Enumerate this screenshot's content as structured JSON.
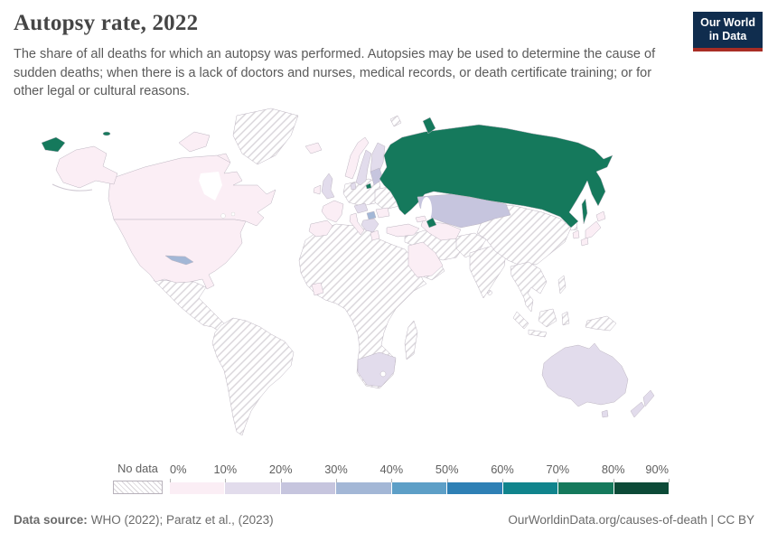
{
  "header": {
    "title": "Autopsy rate, 2022",
    "subtitle": "The share of all deaths for which an autopsy was performed. Autopsies may be used to determine the cause of sudden deaths; when there is a lack of doctors and nurses, medical records, or death certificate training; or for other legal or cultural reasons.",
    "logo": {
      "line1": "Our World",
      "line2": "in Data"
    }
  },
  "chart_data": {
    "type": "choropleth-map",
    "title": "Autopsy rate, 2022",
    "unit": "%",
    "legend": {
      "no_data_label": "No data",
      "tick_labels": [
        "0%",
        "10%",
        "20%",
        "30%",
        "40%",
        "50%",
        "60%",
        "70%",
        "80%",
        "90%"
      ],
      "bin_ranges": [
        "0-10%",
        "10-20%",
        "20-30%",
        "30-40%",
        "40-50%",
        "50-60%",
        "60-70%",
        "70-80%",
        "80-90%"
      ],
      "bin_colors": [
        "#fbeef5",
        "#e2dcec",
        "#c6c5de",
        "#a3b7d6",
        "#5d9fc7",
        "#2e80b5",
        "#10848c",
        "#15795c",
        "#0c4a37"
      ]
    },
    "countries": [
      {
        "id": "united-states",
        "name": "United States",
        "bin": "0-10%",
        "bin_index": 0
      },
      {
        "id": "canada",
        "name": "Canada",
        "bin": "0-10%",
        "bin_index": 0
      },
      {
        "id": "cuba",
        "name": "Cuba",
        "bin": "30-40%",
        "bin_index": 3
      },
      {
        "id": "russia",
        "name": "Russia",
        "bin": "70-80%",
        "bin_index": 7
      },
      {
        "id": "kazakhstan",
        "name": "Kazakhstan",
        "bin": "20-30%",
        "bin_index": 2
      },
      {
        "id": "azerbaijan",
        "name": "Azerbaijan",
        "bin": "70-80%",
        "bin_index": 7
      },
      {
        "id": "georgia",
        "name": "Georgia",
        "bin": "0-10%",
        "bin_index": 0
      },
      {
        "id": "turkey",
        "name": "Turkey",
        "bin": "0-10%",
        "bin_index": 0
      },
      {
        "id": "saudi-arabia",
        "name": "Saudi Arabia",
        "bin": "0-10%",
        "bin_index": 0
      },
      {
        "id": "cote-divoire",
        "name": "Côte d'Ivoire",
        "bin": "0-10%",
        "bin_index": 0
      },
      {
        "id": "south-africa",
        "name": "South Africa",
        "bin": "10-20%",
        "bin_index": 1
      },
      {
        "id": "australia",
        "name": "Australia",
        "bin": "10-20%",
        "bin_index": 1
      },
      {
        "id": "new-zealand",
        "name": "New Zealand",
        "bin": "10-20%",
        "bin_index": 1
      },
      {
        "id": "japan",
        "name": "Japan",
        "bin": "0-10%",
        "bin_index": 0
      },
      {
        "id": "south-korea",
        "name": "South Korea",
        "bin": "0-10%",
        "bin_index": 0
      },
      {
        "id": "iceland",
        "name": "Iceland",
        "bin": "0-10%",
        "bin_index": 0
      },
      {
        "id": "norway",
        "name": "Norway",
        "bin": "0-10%",
        "bin_index": 0
      },
      {
        "id": "sweden",
        "name": "Sweden",
        "bin": "10-20%",
        "bin_index": 1
      },
      {
        "id": "finland",
        "name": "Finland",
        "bin": "10-20%",
        "bin_index": 1
      },
      {
        "id": "denmark",
        "name": "Denmark",
        "bin": "10-20%",
        "bin_index": 1
      },
      {
        "id": "united-kingdom",
        "name": "United Kingdom",
        "bin": "10-20%",
        "bin_index": 1
      },
      {
        "id": "ireland",
        "name": "Ireland",
        "bin": "0-10%",
        "bin_index": 0
      },
      {
        "id": "france",
        "name": "France",
        "bin": "0-10%",
        "bin_index": 0
      },
      {
        "id": "spain-portugal",
        "name": "Spain & Portugal",
        "bin": "0-10%",
        "bin_index": 0
      },
      {
        "id": "italy",
        "name": "Italy",
        "bin": "0-10%",
        "bin_index": 0
      },
      {
        "id": "central-europe",
        "name": "Austria & Czechia",
        "bin": "10-20%",
        "bin_index": 1
      },
      {
        "id": "hungary",
        "name": "Hungary",
        "bin": "30-40%",
        "bin_index": 3
      },
      {
        "id": "romania",
        "name": "Romania",
        "bin": "0-10%",
        "bin_index": 0
      },
      {
        "id": "balkans",
        "name": "Balkans",
        "bin": "10-20%",
        "bin_index": 1
      },
      {
        "id": "greece",
        "name": "Greece",
        "bin": "0-10%",
        "bin_index": 0
      },
      {
        "id": "baltics",
        "name": "Baltic states",
        "bin": "20-30%",
        "bin_index": 2
      },
      {
        "id": "central-asia",
        "name": "Uzbekistan & Turkmenistan",
        "bin": "0-10%",
        "bin_index": 0
      }
    ],
    "no_data_regions": [
      "Greenland",
      "Mexico & Central America",
      "South America",
      "Africa (most countries)",
      "Madagascar",
      "Germany & Poland",
      "Belarus & Ukraine",
      "Iran & Middle East",
      "Yemen & Oman",
      "Afghanistan & Pakistan",
      "India",
      "China & Mongolia",
      "Southeast Asia",
      "Indonesia",
      "Philippines",
      "Papua New Guinea",
      "North Korea",
      "Svalbard"
    ]
  },
  "footer": {
    "source_label": "Data source:",
    "source_text": "WHO (2022); Paratz et al., (2023)",
    "attribution": "OurWorldinData.org/causes-of-death | CC BY"
  },
  "colors": {
    "logo_bg": "#102d4e",
    "logo_accent": "#a82d25",
    "title": "#454545",
    "subtitle": "#5a5a5a",
    "tick_label": "#5f5f5f",
    "footer_text": "#6b6b6b",
    "land_border": "#bdb5c1",
    "hatch_line": "#d8d4d9",
    "ocean": "#ffffff"
  }
}
